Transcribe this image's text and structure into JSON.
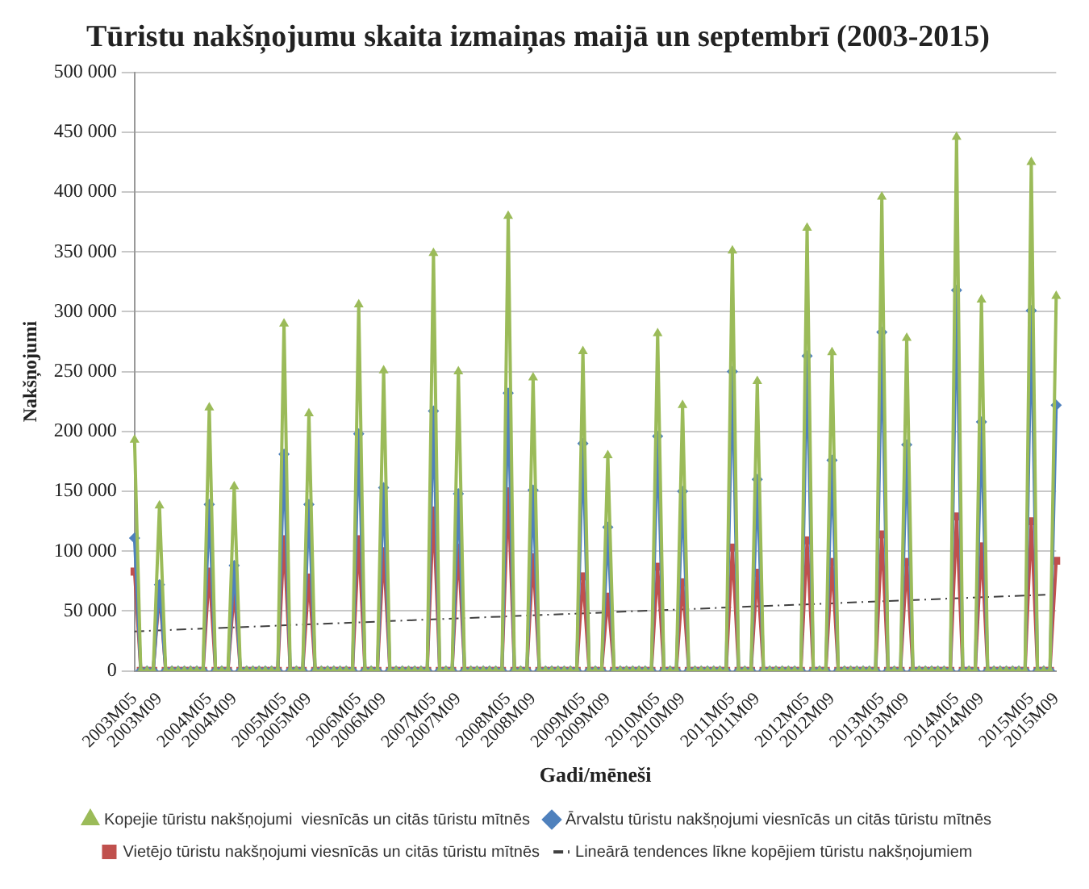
{
  "chart_data": {
    "type": "line",
    "title": "Tūristu nakšņojumu skaita izmaiņas maijā un septembrī (2003-2015)",
    "xlabel": "Gadi/mēneši",
    "ylabel": "Nakšņojumi",
    "categories": [
      "2003M05",
      null,
      null,
      null,
      "2003M09",
      null,
      null,
      null,
      null,
      null,
      null,
      null,
      "2004M05",
      null,
      null,
      null,
      "2004M09",
      null,
      null,
      null,
      null,
      null,
      null,
      null,
      "2005M05",
      null,
      null,
      null,
      "2005M09",
      null,
      null,
      null,
      null,
      null,
      null,
      null,
      "2006M05",
      null,
      null,
      null,
      "2006M09",
      null,
      null,
      null,
      null,
      null,
      null,
      null,
      "2007M05",
      null,
      null,
      null,
      "2007M09",
      null,
      null,
      null,
      null,
      null,
      null,
      null,
      "2008M05",
      null,
      null,
      null,
      "2008M09",
      null,
      null,
      null,
      null,
      null,
      null,
      null,
      "2009M05",
      null,
      null,
      null,
      "2009M09",
      null,
      null,
      null,
      null,
      null,
      null,
      null,
      "2010M05",
      null,
      null,
      null,
      "2010M09",
      null,
      null,
      null,
      null,
      null,
      null,
      null,
      "2011M05",
      null,
      null,
      null,
      "2011M09",
      null,
      null,
      null,
      null,
      null,
      null,
      null,
      "2012M05",
      null,
      null,
      null,
      "2012M09",
      null,
      null,
      null,
      null,
      null,
      null,
      null,
      "2013M05",
      null,
      null,
      null,
      "2013M09",
      null,
      null,
      null,
      null,
      null,
      null,
      null,
      "2014M05",
      null,
      null,
      null,
      "2014M09",
      null,
      null,
      null,
      null,
      null,
      null,
      null,
      "2015M05",
      null,
      null,
      null,
      "2015M09"
    ],
    "series": [
      {
        "name": "Kopejie tūristu nakšņojumi  viesnīcās un citās tūristu mītnēs",
        "color": "#9bbb59",
        "marker": "triangle",
        "values": [
          193000,
          0,
          0,
          0,
          138000,
          0,
          0,
          0,
          0,
          0,
          0,
          0,
          220000,
          0,
          0,
          0,
          154000,
          0,
          0,
          0,
          0,
          0,
          0,
          0,
          290000,
          0,
          0,
          0,
          215000,
          0,
          0,
          0,
          0,
          0,
          0,
          0,
          306000,
          0,
          0,
          0,
          251000,
          0,
          0,
          0,
          0,
          0,
          0,
          0,
          349000,
          0,
          0,
          0,
          250000,
          0,
          0,
          0,
          0,
          0,
          0,
          0,
          380000,
          0,
          0,
          0,
          245000,
          0,
          0,
          0,
          0,
          0,
          0,
          0,
          267000,
          0,
          0,
          0,
          180000,
          0,
          0,
          0,
          0,
          0,
          0,
          0,
          282000,
          0,
          0,
          0,
          222000,
          0,
          0,
          0,
          0,
          0,
          0,
          0,
          351000,
          0,
          0,
          0,
          242000,
          0,
          0,
          0,
          0,
          0,
          0,
          0,
          370000,
          0,
          0,
          0,
          266000,
          0,
          0,
          0,
          0,
          0,
          0,
          0,
          396000,
          0,
          0,
          0,
          278000,
          0,
          0,
          0,
          0,
          0,
          0,
          0,
          446000,
          0,
          0,
          0,
          310000,
          0,
          0,
          0,
          0,
          0,
          0,
          0,
          425000,
          0,
          0,
          0,
          313000
        ]
      },
      {
        "name": "Ārvalstu tūristu nakšņojumi viesnīcās un citās tūristu mītnēs",
        "color": "#4f81bd",
        "marker": "diamond",
        "values": [
          111000,
          0,
          0,
          0,
          72000,
          0,
          0,
          0,
          0,
          0,
          0,
          0,
          139000,
          0,
          0,
          0,
          88000,
          0,
          0,
          0,
          0,
          0,
          0,
          0,
          181000,
          0,
          0,
          0,
          139000,
          0,
          0,
          0,
          0,
          0,
          0,
          0,
          198000,
          0,
          0,
          0,
          153000,
          0,
          0,
          0,
          0,
          0,
          0,
          0,
          217000,
          0,
          0,
          0,
          148000,
          0,
          0,
          0,
          0,
          0,
          0,
          0,
          232000,
          0,
          0,
          0,
          151000,
          0,
          0,
          0,
          0,
          0,
          0,
          0,
          190000,
          0,
          0,
          0,
          120000,
          0,
          0,
          0,
          0,
          0,
          0,
          0,
          196000,
          0,
          0,
          0,
          150000,
          0,
          0,
          0,
          0,
          0,
          0,
          0,
          250000,
          0,
          0,
          0,
          160000,
          0,
          0,
          0,
          0,
          0,
          0,
          0,
          263000,
          0,
          0,
          0,
          176000,
          0,
          0,
          0,
          0,
          0,
          0,
          0,
          283000,
          0,
          0,
          0,
          189000,
          0,
          0,
          0,
          0,
          0,
          0,
          0,
          318000,
          0,
          0,
          0,
          208000,
          0,
          0,
          0,
          0,
          0,
          0,
          0,
          301000,
          0,
          0,
          0,
          222000
        ]
      },
      {
        "name": "Vietējo tūristu nakšņojumi viesnīcās un citās tūristu mītnēs",
        "color": "#c0504d",
        "marker": "square",
        "values": [
          83000,
          0,
          0,
          0,
          66000,
          0,
          0,
          0,
          0,
          0,
          0,
          0,
          83000,
          0,
          0,
          0,
          67000,
          0,
          0,
          0,
          0,
          0,
          0,
          0,
          110000,
          0,
          0,
          0,
          78000,
          0,
          0,
          0,
          0,
          0,
          0,
          0,
          110000,
          0,
          0,
          0,
          100000,
          0,
          0,
          0,
          0,
          0,
          0,
          0,
          134000,
          0,
          0,
          0,
          103000,
          0,
          0,
          0,
          0,
          0,
          0,
          0,
          150000,
          0,
          0,
          0,
          95000,
          0,
          0,
          0,
          0,
          0,
          0,
          0,
          79000,
          0,
          0,
          0,
          62000,
          0,
          0,
          0,
          0,
          0,
          0,
          0,
          87000,
          0,
          0,
          0,
          74000,
          0,
          0,
          0,
          0,
          0,
          0,
          0,
          103000,
          0,
          0,
          0,
          82000,
          0,
          0,
          0,
          0,
          0,
          0,
          0,
          109000,
          0,
          0,
          0,
          91000,
          0,
          0,
          0,
          0,
          0,
          0,
          0,
          114000,
          0,
          0,
          0,
          91000,
          0,
          0,
          0,
          0,
          0,
          0,
          0,
          129000,
          0,
          0,
          0,
          104000,
          0,
          0,
          0,
          0,
          0,
          0,
          0,
          125000,
          0,
          0,
          0,
          92000
        ]
      },
      {
        "name": "Lineārā tendences līkne kopējiem tūristu nakšņojumiem",
        "color": "#404040",
        "marker": "none",
        "line_style": "dashed",
        "values": [
          33000,
          null,
          null,
          null,
          null,
          null,
          null,
          null,
          null,
          null,
          null,
          null,
          null,
          null,
          null,
          null,
          null,
          null,
          null,
          null,
          null,
          null,
          null,
          null,
          null,
          null,
          null,
          null,
          null,
          null,
          null,
          null,
          null,
          null,
          null,
          null,
          null,
          null,
          null,
          null,
          null,
          null,
          null,
          null,
          null,
          null,
          null,
          null,
          null,
          null,
          null,
          null,
          null,
          null,
          null,
          null,
          null,
          null,
          null,
          null,
          null,
          null,
          null,
          null,
          null,
          null,
          null,
          null,
          null,
          null,
          null,
          null,
          null,
          null,
          null,
          null,
          null,
          null,
          null,
          null,
          null,
          null,
          null,
          null,
          null,
          null,
          null,
          null,
          null,
          null,
          null,
          null,
          null,
          null,
          null,
          null,
          null,
          null,
          null,
          null,
          null,
          null,
          null,
          null,
          null,
          null,
          null,
          null,
          null,
          null,
          null,
          null,
          null,
          null,
          null,
          null,
          null,
          null,
          null,
          null,
          null,
          null,
          null,
          null,
          null,
          null,
          null,
          null,
          null,
          null,
          null,
          null,
          null,
          null,
          null,
          null,
          null,
          null,
          null,
          null,
          null,
          null,
          null,
          null,
          null,
          null,
          null,
          null,
          64000
        ]
      }
    ],
    "ylim": [
      0,
      500000
    ],
    "yticks": [
      0,
      {
        "value": 50000,
        "label": "50 000"
      },
      {
        "value": 100000,
        "label": "100 000"
      },
      {
        "value": 150000,
        "label": "150 000"
      },
      {
        "value": 200000,
        "label": "200 000"
      },
      {
        "value": 250000,
        "label": "250 000"
      },
      {
        "value": 300000,
        "label": "300 000"
      },
      {
        "value": 350000,
        "label": "350 000"
      },
      {
        "value": 400000,
        "label": "400 000"
      },
      {
        "value": 450000,
        "label": "450 000"
      },
      {
        "value": 500000,
        "label": "500 000"
      }
    ],
    "grid": "y",
    "legend": "bottom"
  }
}
